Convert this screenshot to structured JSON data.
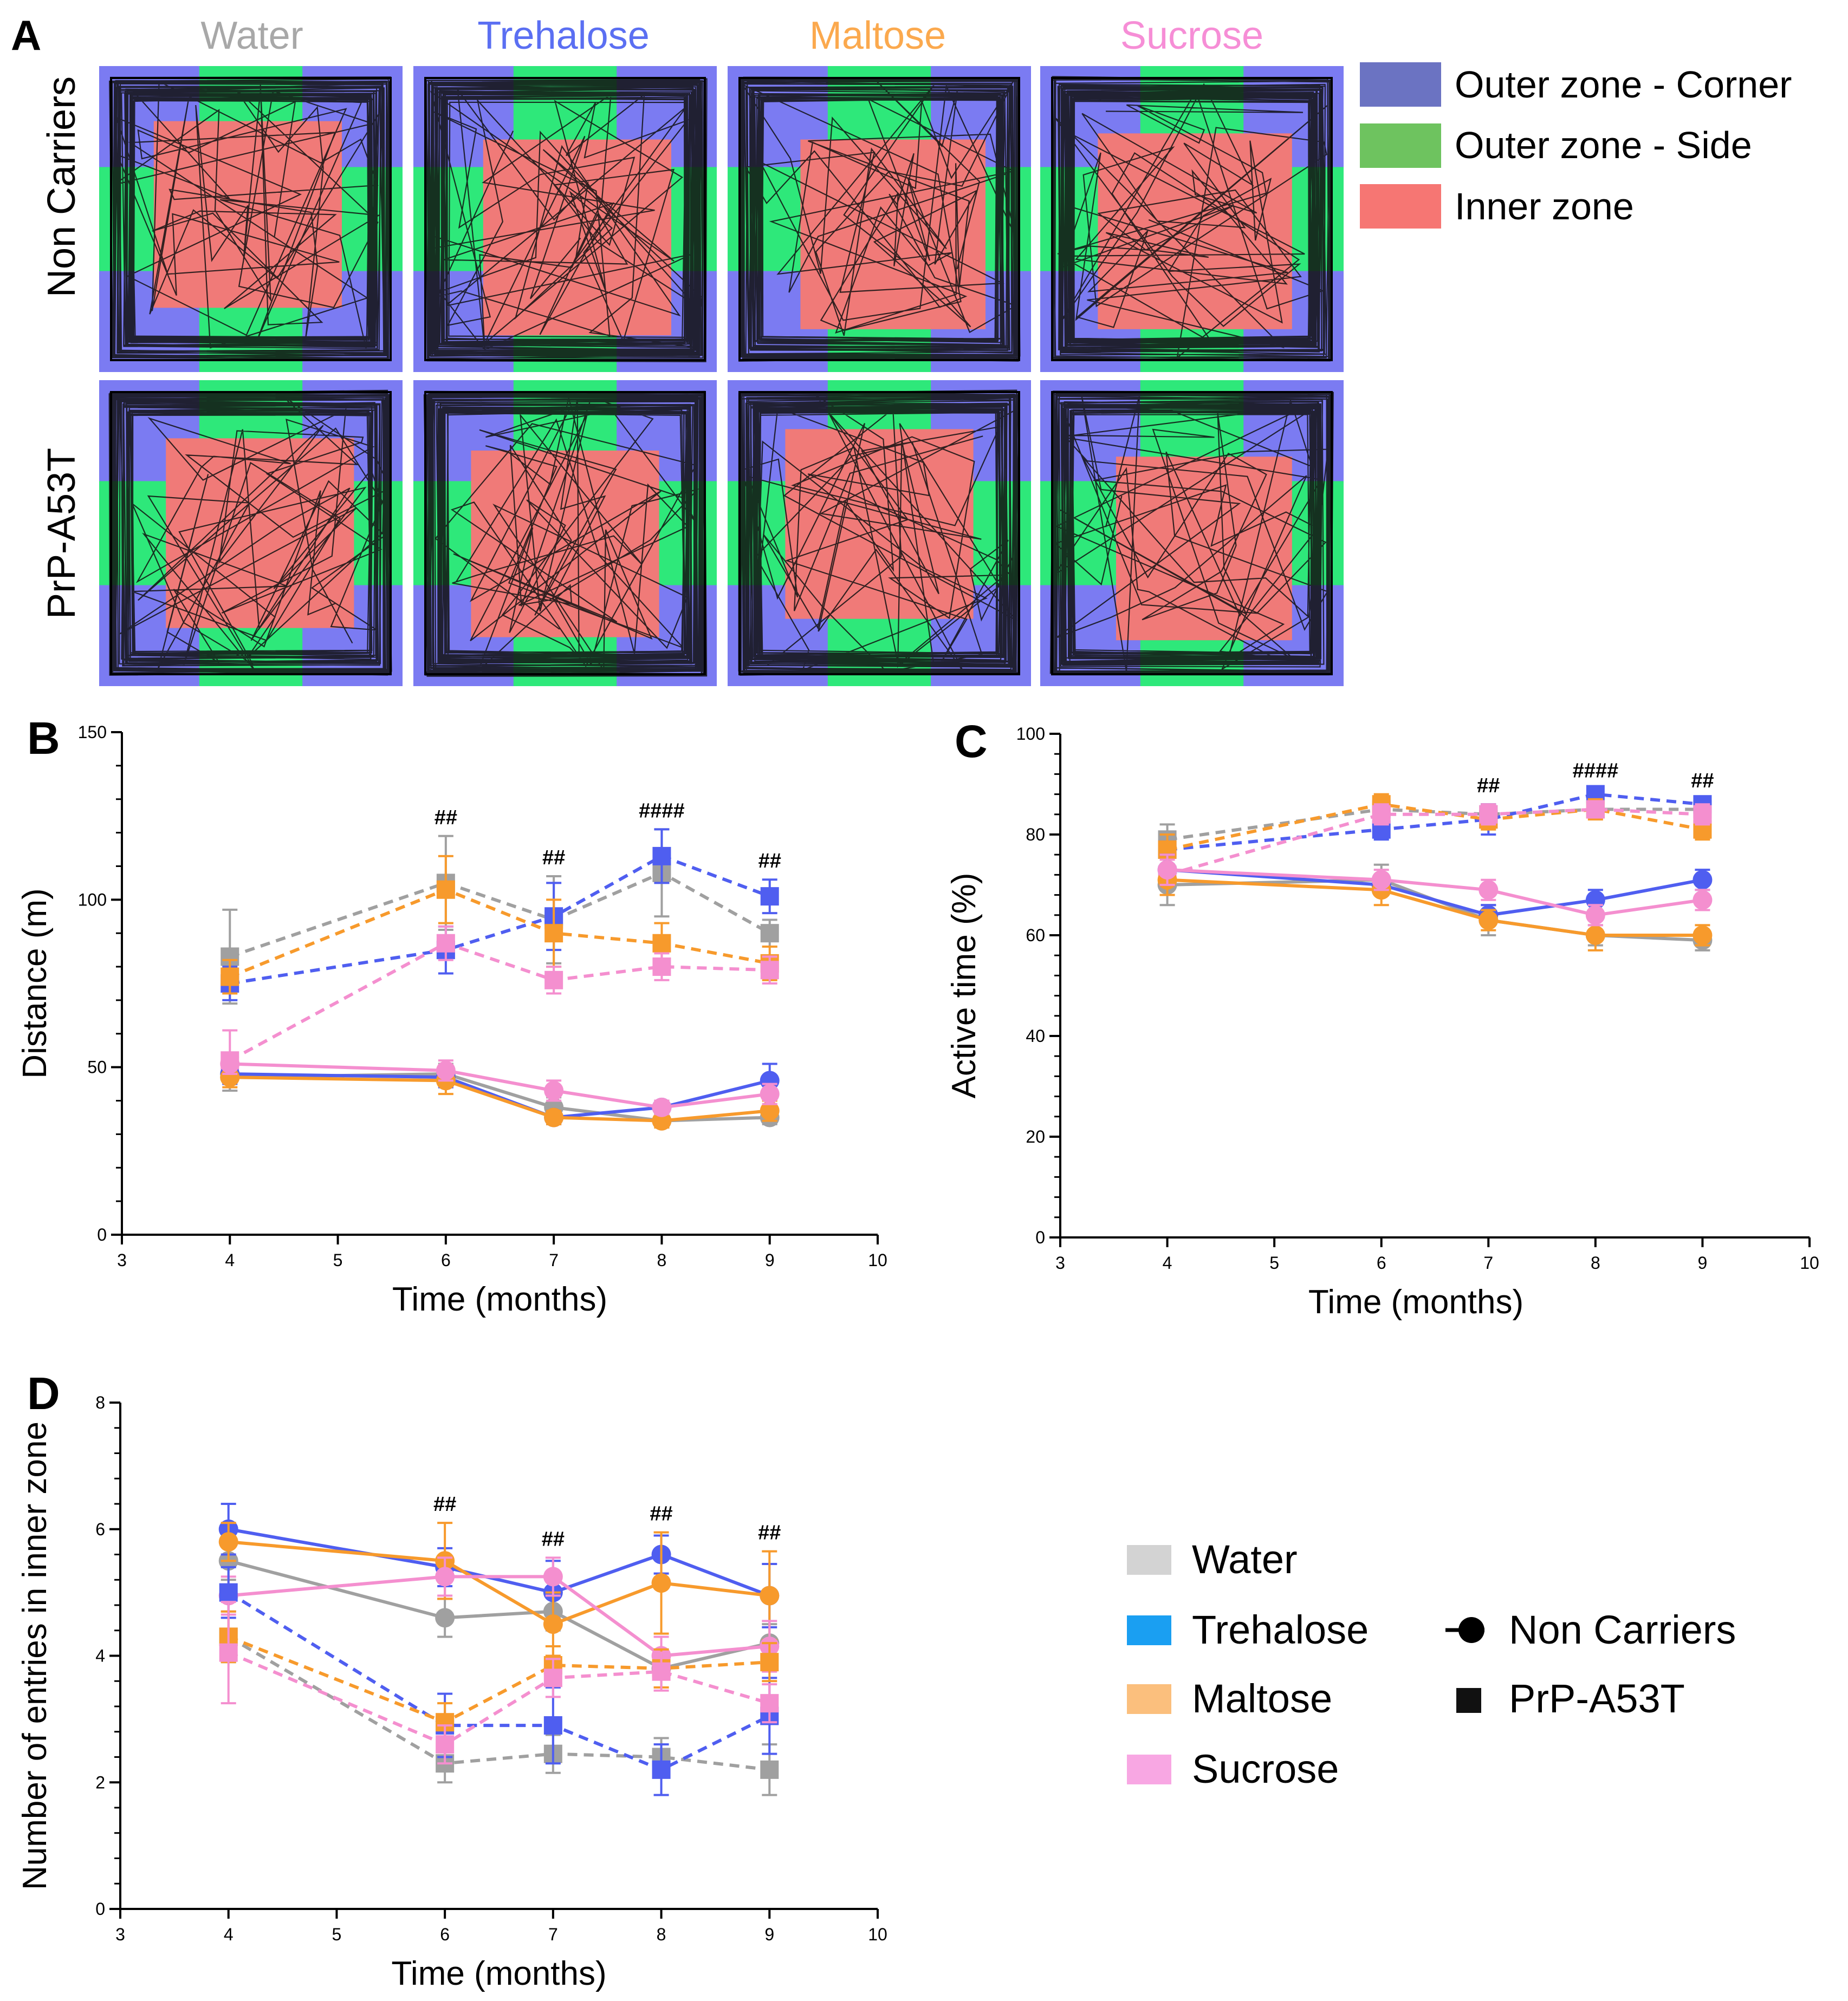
{
  "colors": {
    "water": "#a0a0a0",
    "trehalose": "#4f5ef0",
    "maltose": "#f79a2c",
    "sucrose": "#f48fcf",
    "corner": "#7b7bf2",
    "side": "#2ee87a",
    "inner": "#f07a78",
    "track": "#111111"
  },
  "panel_a": {
    "letter": "A",
    "columns": [
      "Water",
      "Trehalose",
      "Maltose",
      "Sucrose"
    ],
    "rows": [
      "Non Carriers",
      "PrP-A53T"
    ],
    "legend": [
      {
        "label": "Outer zone - Corner",
        "swatch": "#6b73c2"
      },
      {
        "label": "Outer zone - Side",
        "swatch": "#6ec35f"
      },
      {
        "label": "Inner zone",
        "swatch": "#f67673"
      }
    ]
  },
  "legend_d": {
    "treatments": [
      {
        "label": "Water",
        "swatch": "#d3d3d3"
      },
      {
        "label": "Trehalose",
        "swatch": "#1a9ff2"
      },
      {
        "label": "Maltose",
        "swatch": "#fbbf7d"
      },
      {
        "label": "Sucrose",
        "swatch": "#f8a7e3"
      }
    ],
    "genotypes": [
      {
        "label": "Non Carriers",
        "marker": "circle"
      },
      {
        "label": "PrP-A53T",
        "marker": "square"
      }
    ]
  },
  "chart_data": [
    {
      "panel": "B",
      "type": "line",
      "xlabel": "Time (months)",
      "ylabel": "Distance (m)",
      "xlim": [
        3,
        10
      ],
      "ylim": [
        0,
        150
      ],
      "xticks": [
        3,
        4,
        5,
        6,
        7,
        8,
        9,
        10
      ],
      "yticks": [
        0,
        50,
        100,
        150
      ],
      "annotations": [
        {
          "x": 6,
          "text": "##"
        },
        {
          "x": 7,
          "text": "##"
        },
        {
          "x": 8,
          "text": "####"
        },
        {
          "x": 9,
          "text": "##"
        }
      ],
      "x": [
        4,
        6,
        7,
        8,
        9
      ],
      "series": [
        {
          "name": "Water PrP-A53T",
          "color": "water",
          "genotype": "PrP-A53T",
          "values": [
            83,
            105,
            94,
            108,
            90
          ],
          "err": [
            14,
            14,
            13,
            13,
            4
          ]
        },
        {
          "name": "Trehalose PrP-A53T",
          "color": "trehalose",
          "genotype": "PrP-A53T",
          "values": [
            75,
            85,
            95,
            113,
            101
          ],
          "err": [
            5,
            7,
            10,
            8,
            5
          ]
        },
        {
          "name": "Maltose PrP-A53T",
          "color": "maltose",
          "genotype": "PrP-A53T",
          "values": [
            77,
            103,
            90,
            87,
            81
          ],
          "err": [
            5,
            10,
            10,
            6,
            5
          ]
        },
        {
          "name": "Sucrose PrP-A53T",
          "color": "sucrose",
          "genotype": "PrP-A53T",
          "values": [
            52,
            87,
            76,
            80,
            79
          ],
          "err": [
            9,
            5,
            4,
            4,
            4
          ]
        },
        {
          "name": "Water Non Carriers",
          "color": "water",
          "genotype": "Non Carriers",
          "values": [
            47,
            48,
            38,
            34,
            35
          ],
          "err": [
            4,
            3,
            3,
            2,
            2
          ]
        },
        {
          "name": "Trehalose Non Carriers",
          "color": "trehalose",
          "genotype": "Non Carriers",
          "values": [
            48,
            47,
            35,
            38,
            46
          ],
          "err": [
            3,
            3,
            2,
            2,
            5
          ]
        },
        {
          "name": "Maltose Non Carriers",
          "color": "maltose",
          "genotype": "Non Carriers",
          "values": [
            47,
            46,
            35,
            34,
            37
          ],
          "err": [
            3,
            4,
            2,
            2,
            3
          ]
        },
        {
          "name": "Sucrose Non Carriers",
          "color": "sucrose",
          "genotype": "Non Carriers",
          "values": [
            51,
            49,
            43,
            38,
            42
          ],
          "err": [
            3,
            3,
            3,
            2,
            3
          ]
        }
      ]
    },
    {
      "panel": "C",
      "type": "line",
      "xlabel": "Time (months)",
      "ylabel": "Active time (%)",
      "xlim": [
        3,
        10
      ],
      "ylim": [
        0,
        100
      ],
      "xticks": [
        3,
        4,
        5,
        6,
        7,
        8,
        9,
        10
      ],
      "yticks": [
        0,
        20,
        40,
        60,
        80,
        100
      ],
      "annotations": [
        {
          "x": 7,
          "text": "##"
        },
        {
          "x": 8,
          "text": "####"
        },
        {
          "x": 9,
          "text": "##"
        }
      ],
      "x": [
        4,
        6,
        7,
        8,
        9
      ],
      "series": [
        {
          "name": "Water PrP-A53T",
          "color": "water",
          "genotype": "PrP-A53T",
          "values": [
            79,
            85,
            84,
            85,
            85
          ],
          "err": [
            3,
            2,
            2,
            1,
            1
          ]
        },
        {
          "name": "Trehalose PrP-A53T",
          "color": "trehalose",
          "genotype": "PrP-A53T",
          "values": [
            77,
            81,
            83,
            88,
            86
          ],
          "err": [
            3,
            2,
            3,
            1,
            1
          ]
        },
        {
          "name": "Maltose PrP-A53T",
          "color": "maltose",
          "genotype": "PrP-A53T",
          "values": [
            77,
            86,
            83,
            85,
            81
          ],
          "err": [
            3,
            2,
            2,
            2,
            2
          ]
        },
        {
          "name": "Sucrose PrP-A53T",
          "color": "sucrose",
          "genotype": "PrP-A53T",
          "values": [
            72,
            84,
            84,
            85,
            84
          ],
          "err": [
            3,
            2,
            2,
            1,
            2
          ]
        },
        {
          "name": "Water Non Carriers",
          "color": "water",
          "genotype": "Non Carriers",
          "values": [
            70,
            71,
            63,
            60,
            59
          ],
          "err": [
            4,
            3,
            3,
            2,
            2
          ]
        },
        {
          "name": "Trehalose Non Carriers",
          "color": "trehalose",
          "genotype": "Non Carriers",
          "values": [
            73,
            70,
            64,
            67,
            71
          ],
          "err": [
            3,
            2,
            2,
            2,
            2
          ]
        },
        {
          "name": "Maltose Non Carriers",
          "color": "maltose",
          "genotype": "Non Carriers",
          "values": [
            71,
            69,
            63,
            60,
            60
          ],
          "err": [
            3,
            3,
            2,
            3,
            2
          ]
        },
        {
          "name": "Sucrose Non Carriers",
          "color": "sucrose",
          "genotype": "Non Carriers",
          "values": [
            73,
            71,
            69,
            64,
            67
          ],
          "err": [
            3,
            2,
            2,
            2,
            2
          ]
        }
      ]
    },
    {
      "panel": "D",
      "type": "line",
      "xlabel": "Time (months)",
      "ylabel": "Number of entries in inner zone",
      "xlim": [
        3,
        10
      ],
      "ylim": [
        0,
        8
      ],
      "xticks": [
        3,
        4,
        5,
        6,
        7,
        8,
        9,
        10
      ],
      "yticks": [
        0,
        2,
        4,
        6,
        8
      ],
      "annotations": [
        {
          "x": 6,
          "text": "##"
        },
        {
          "x": 7,
          "text": "##"
        },
        {
          "x": 8,
          "text": "##"
        },
        {
          "x": 9,
          "text": "##"
        }
      ],
      "x": [
        4,
        6,
        7,
        8,
        9
      ],
      "series": [
        {
          "name": "Water Non Carriers",
          "color": "water",
          "genotype": "Non Carriers",
          "values": [
            5.5,
            4.6,
            4.7,
            3.8,
            4.2
          ],
          "err": [
            0.3,
            0.3,
            0.3,
            0.3,
            0.3
          ]
        },
        {
          "name": "Trehalose Non Carriers",
          "color": "trehalose",
          "genotype": "Non Carriers",
          "values": [
            6.0,
            5.4,
            5.0,
            5.6,
            4.95
          ],
          "err": [
            0.4,
            0.3,
            0.5,
            0.3,
            0.5
          ]
        },
        {
          "name": "Maltose Non Carriers",
          "color": "maltose",
          "genotype": "Non Carriers",
          "values": [
            5.8,
            5.5,
            4.5,
            5.15,
            4.95
          ],
          "err": [
            0.3,
            0.6,
            0.5,
            0.8,
            0.7
          ]
        },
        {
          "name": "Sucrose Non Carriers",
          "color": "sucrose",
          "genotype": "Non Carriers",
          "values": [
            4.95,
            5.25,
            5.25,
            4.0,
            4.15
          ],
          "err": [
            0.3,
            0.3,
            0.3,
            0.3,
            0.4
          ]
        },
        {
          "name": "Water PrP-A53T",
          "color": "water",
          "genotype": "PrP-A53T",
          "values": [
            4.3,
            2.3,
            2.45,
            2.4,
            2.2
          ],
          "err": [
            0.4,
            0.3,
            0.3,
            0.3,
            0.4
          ]
        },
        {
          "name": "Trehalose PrP-A53T",
          "color": "trehalose",
          "genotype": "PrP-A53T",
          "values": [
            5.0,
            2.9,
            2.9,
            2.2,
            3.05
          ],
          "err": [
            0.4,
            0.5,
            0.6,
            0.4,
            0.6
          ]
        },
        {
          "name": "Maltose PrP-A53T",
          "color": "maltose",
          "genotype": "PrP-A53T",
          "values": [
            4.3,
            2.95,
            3.85,
            3.8,
            3.9
          ],
          "err": [
            0.4,
            0.3,
            0.3,
            0.3,
            0.3
          ]
        },
        {
          "name": "Sucrose PrP-A53T",
          "color": "sucrose",
          "genotype": "PrP-A53T",
          "values": [
            4.05,
            2.6,
            3.65,
            3.75,
            3.25
          ],
          "err": [
            0.8,
            0.3,
            0.3,
            0.3,
            0.3
          ]
        }
      ]
    }
  ]
}
